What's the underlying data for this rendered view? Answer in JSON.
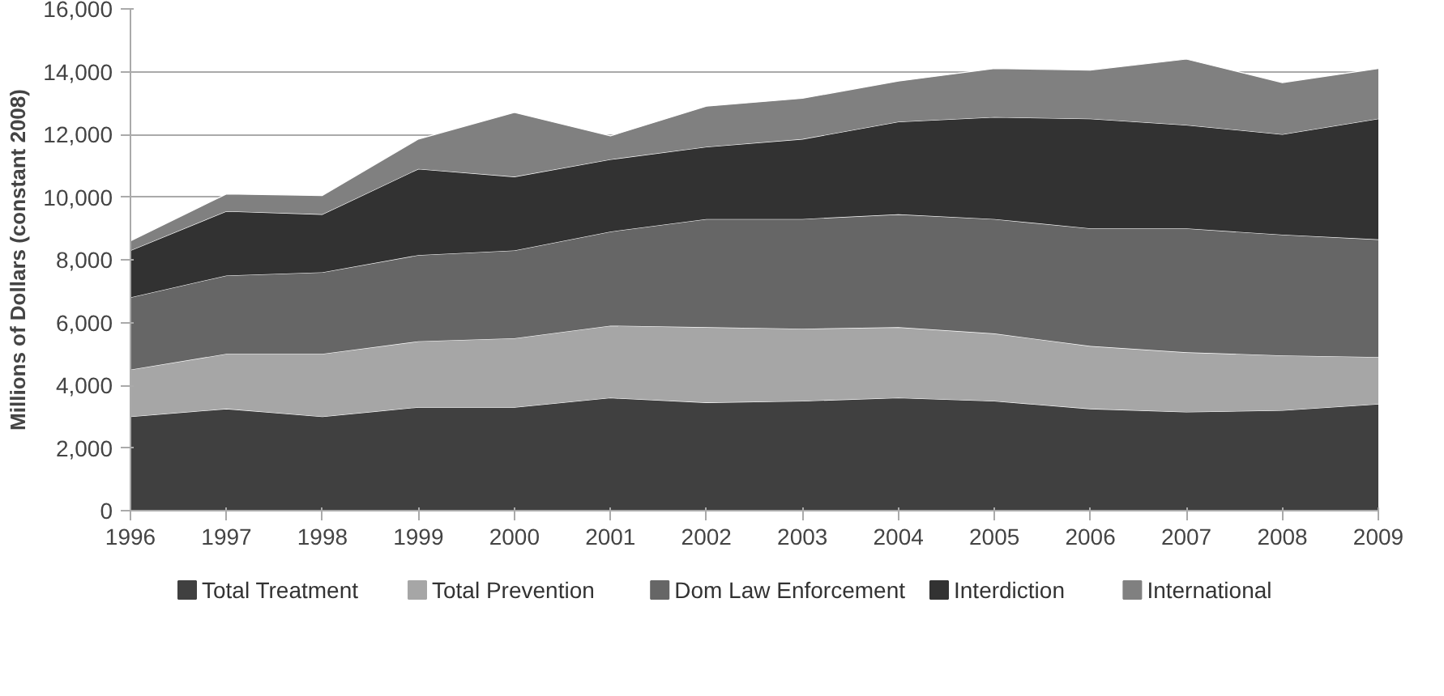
{
  "chart_data": {
    "type": "area",
    "stacked": true,
    "ylabel": "Millions of Dollars (constant 2008)",
    "x": [
      1996,
      1997,
      1998,
      1999,
      2000,
      2001,
      2002,
      2003,
      2004,
      2005,
      2006,
      2007,
      2008,
      2009
    ],
    "xlim": [
      1996,
      2009
    ],
    "xticks": [
      1996,
      1997,
      1998,
      1999,
      2000,
      2001,
      2002,
      2003,
      2004,
      2005,
      2006,
      2007,
      2008,
      2009
    ],
    "ylim": [
      0,
      16000
    ],
    "yticks": [
      {
        "value": 0,
        "label": "0"
      },
      {
        "value": 2000,
        "label": "2,000"
      },
      {
        "value": 4000,
        "label": "4,000"
      },
      {
        "value": 6000,
        "label": "6,000"
      },
      {
        "value": 8000,
        "label": "8,000"
      },
      {
        "value": 10000,
        "label": "10,000"
      },
      {
        "value": 12000,
        "label": "12,000"
      },
      {
        "value": 14000,
        "label": "14,000"
      },
      {
        "value": 16000,
        "label": "16,000"
      }
    ],
    "grid": "y",
    "legend": "bottom",
    "series": [
      {
        "name": "Total Treatment",
        "color": "#404040",
        "values": [
          3000,
          3250,
          3000,
          3300,
          3300,
          3600,
          3450,
          3500,
          3600,
          3500,
          3250,
          3150,
          3200,
          3400
        ]
      },
      {
        "name": "Total Prevention",
        "color": "#a6a6a6",
        "values": [
          1500,
          1750,
          2000,
          2100,
          2200,
          2300,
          2400,
          2300,
          2250,
          2150,
          2000,
          1900,
          1750,
          1500
        ]
      },
      {
        "name": "Dom Law Enforcement",
        "color": "#666666",
        "values": [
          2300,
          2500,
          2600,
          2750,
          2800,
          3000,
          3450,
          3500,
          3600,
          3650,
          3750,
          3950,
          3850,
          3750
        ]
      },
      {
        "name": "Interdiction",
        "color": "#323232",
        "values": [
          1500,
          2050,
          1850,
          2750,
          2350,
          2300,
          2300,
          2550,
          2950,
          3250,
          3500,
          3300,
          3200,
          3850
        ]
      },
      {
        "name": "International",
        "color": "#808080",
        "values": [
          300,
          550,
          600,
          950,
          2050,
          750,
          1300,
          1300,
          1300,
          1550,
          1550,
          2100,
          1650,
          1600
        ]
      }
    ]
  }
}
